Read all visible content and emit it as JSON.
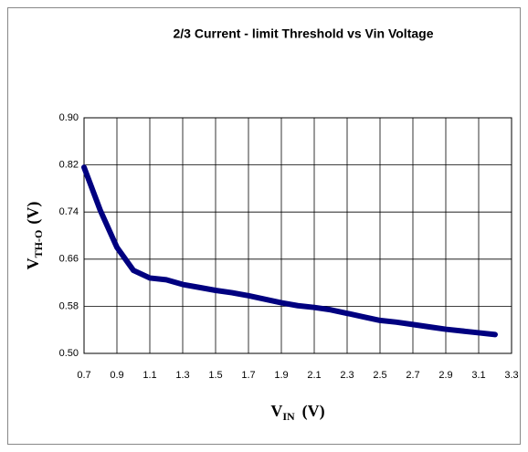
{
  "chart_data": {
    "type": "line",
    "title": "2/3 Current - limit Threshold  vs  Vin Voltage",
    "x_label": {
      "main": "V",
      "sub": "IN",
      "unit": "(V)"
    },
    "y_label": {
      "main": "V",
      "sub": "TH-O",
      "unit": "(V)"
    },
    "x": [
      0.7,
      0.8,
      0.9,
      1.0,
      1.1,
      1.2,
      1.3,
      1.4,
      1.5,
      1.6,
      1.7,
      1.8,
      1.9,
      2.0,
      2.1,
      2.2,
      2.3,
      2.4,
      2.5,
      2.6,
      2.7,
      2.8,
      2.9,
      3.0,
      3.1,
      3.2
    ],
    "series": [
      {
        "color": "#000080",
        "values": [
          0.816,
          0.742,
          0.68,
          0.641,
          0.628,
          0.625,
          0.617,
          0.612,
          0.607,
          0.603,
          0.598,
          0.592,
          0.586,
          0.581,
          0.578,
          0.574,
          0.568,
          0.562,
          0.556,
          0.553,
          0.549,
          0.545,
          0.541,
          0.538,
          0.535,
          0.532
        ]
      }
    ],
    "xlim": [
      0.7,
      3.3
    ],
    "xticks": [
      0.7,
      0.9,
      1.1,
      1.3,
      1.5,
      1.7,
      1.9,
      2.1,
      2.3,
      2.5,
      2.7,
      2.9,
      3.1,
      3.3
    ],
    "ylim": [
      0.5,
      0.9
    ],
    "yticks": [
      {
        "value": 0.5,
        "label": "0.50"
      },
      {
        "value": 0.58,
        "label": "0.58"
      },
      {
        "value": 0.66,
        "label": "0.66"
      },
      {
        "value": 0.74,
        "label": "0.74"
      },
      {
        "value": 0.82,
        "label": "0.82"
      },
      {
        "value": 0.9,
        "label": "0.90"
      }
    ],
    "grid": true
  }
}
